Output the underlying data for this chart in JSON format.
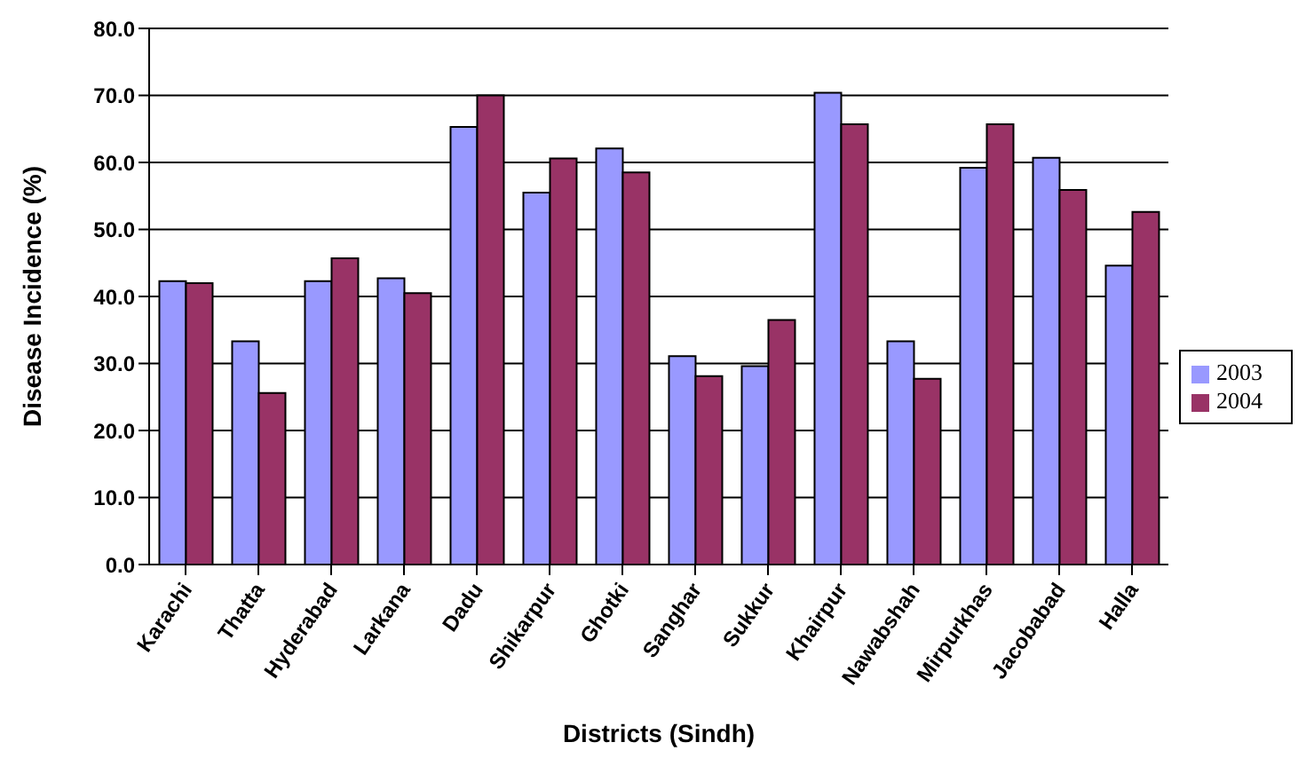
{
  "chart_data": {
    "type": "bar",
    "xlabel": "Districts (Sindh)",
    "ylabel": "Disease Incidence (%)",
    "categories": [
      "Karachi",
      "Thatta",
      "Hyderabad",
      "Larkana",
      "Dadu",
      "Shikarpur",
      "Ghotki",
      "Sanghar",
      "Sukkur",
      "Khairpur",
      "Nawabshah",
      "Mirpurkhas",
      "Jacobabad",
      "Halla"
    ],
    "series": [
      {
        "name": "2003",
        "color": "#9999ff",
        "values": [
          42.3,
          33.3,
          42.3,
          42.7,
          65.3,
          55.5,
          62.1,
          31.1,
          29.6,
          70.4,
          33.3,
          59.2,
          60.7,
          44.6
        ]
      },
      {
        "name": "2004",
        "color": "#993366",
        "values": [
          42.0,
          25.6,
          45.7,
          40.5,
          70.0,
          60.6,
          58.5,
          28.1,
          36.5,
          65.7,
          27.7,
          65.7,
          55.9,
          52.6
        ]
      }
    ],
    "ylim": [
      0,
      80
    ],
    "yticks": [
      {
        "value": 0,
        "label": "0.0"
      },
      {
        "value": 10,
        "label": "10.0"
      },
      {
        "value": 20,
        "label": "20.0"
      },
      {
        "value": 30,
        "label": "30.0"
      },
      {
        "value": 40,
        "label": "40.0"
      },
      {
        "value": 50,
        "label": "50.0"
      },
      {
        "value": 60,
        "label": "60.0"
      },
      {
        "value": 70,
        "label": "70.0"
      },
      {
        "value": 80,
        "label": "80.0"
      }
    ],
    "grid": "y",
    "legend": "right"
  }
}
